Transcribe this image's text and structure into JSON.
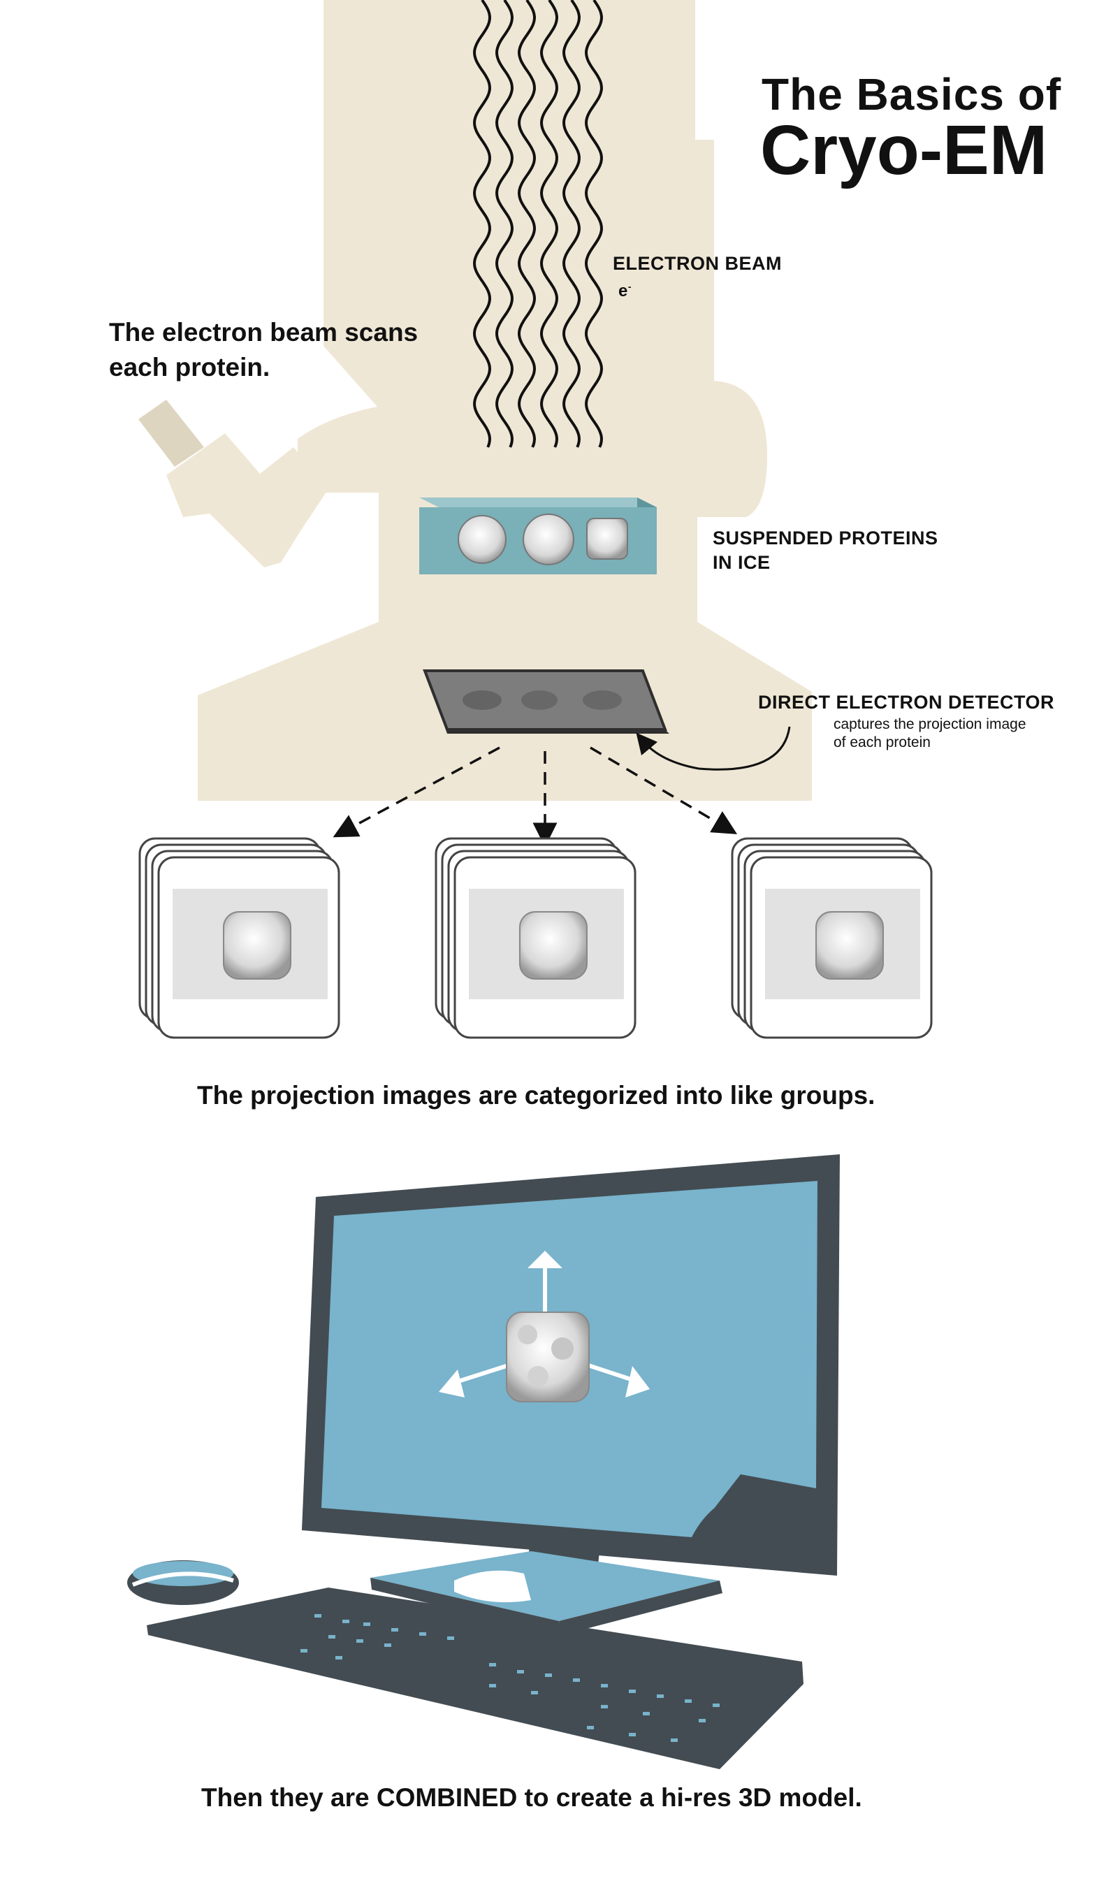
{
  "title": {
    "line1": "The Basics of",
    "line2": "Cryo-EM"
  },
  "labels": {
    "electron_beam": "ELECTRON BEAM",
    "electron_symbol": "e",
    "electron_sup": "-",
    "suspended_1": "SUSPENDED PROTEINS",
    "suspended_2": "IN ICE",
    "detector": "DIRECT ELECTRON DETECTOR",
    "detector_sub1": "captures the projection image",
    "detector_sub2": "of each protein"
  },
  "captions": {
    "scan_1": "The electron beam scans",
    "scan_2": "each protein.",
    "categorized": "The projection images are categorized into like groups.",
    "combined": "Then they are COMBINED to create a hi-res 3D model."
  },
  "colors": {
    "microscope": "#efe7d5",
    "ice": "#7ab0b8",
    "detector": "#7a7a7a",
    "monitor_frame": "#434c52",
    "screen": "#79b3cc",
    "card_inner": "#e2e2e2"
  }
}
